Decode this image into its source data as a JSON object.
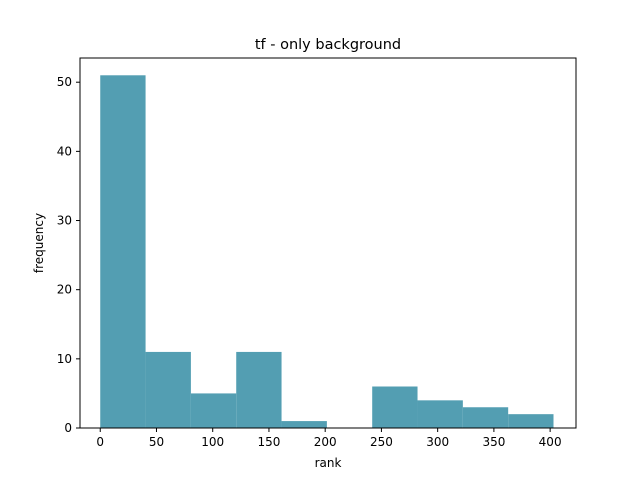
{
  "chart_data": {
    "type": "bar",
    "title": "tf - only background",
    "xlabel": "rank",
    "ylabel": "frequency",
    "bin_edges": [
      0,
      40.3,
      80.6,
      120.9,
      161.2,
      201.5,
      241.8,
      282.1,
      322.4,
      362.7,
      403
    ],
    "values": [
      51,
      11,
      5,
      11,
      1,
      0,
      6,
      4,
      3,
      2
    ],
    "xlim": [
      -18,
      423
    ],
    "ylim": [
      0,
      53.5
    ],
    "xticks": [
      0,
      50,
      100,
      150,
      200,
      250,
      300,
      350,
      400
    ],
    "yticks": [
      0,
      10,
      20,
      30,
      40,
      50
    ],
    "bar_color": "#539eb2",
    "grid": false
  }
}
